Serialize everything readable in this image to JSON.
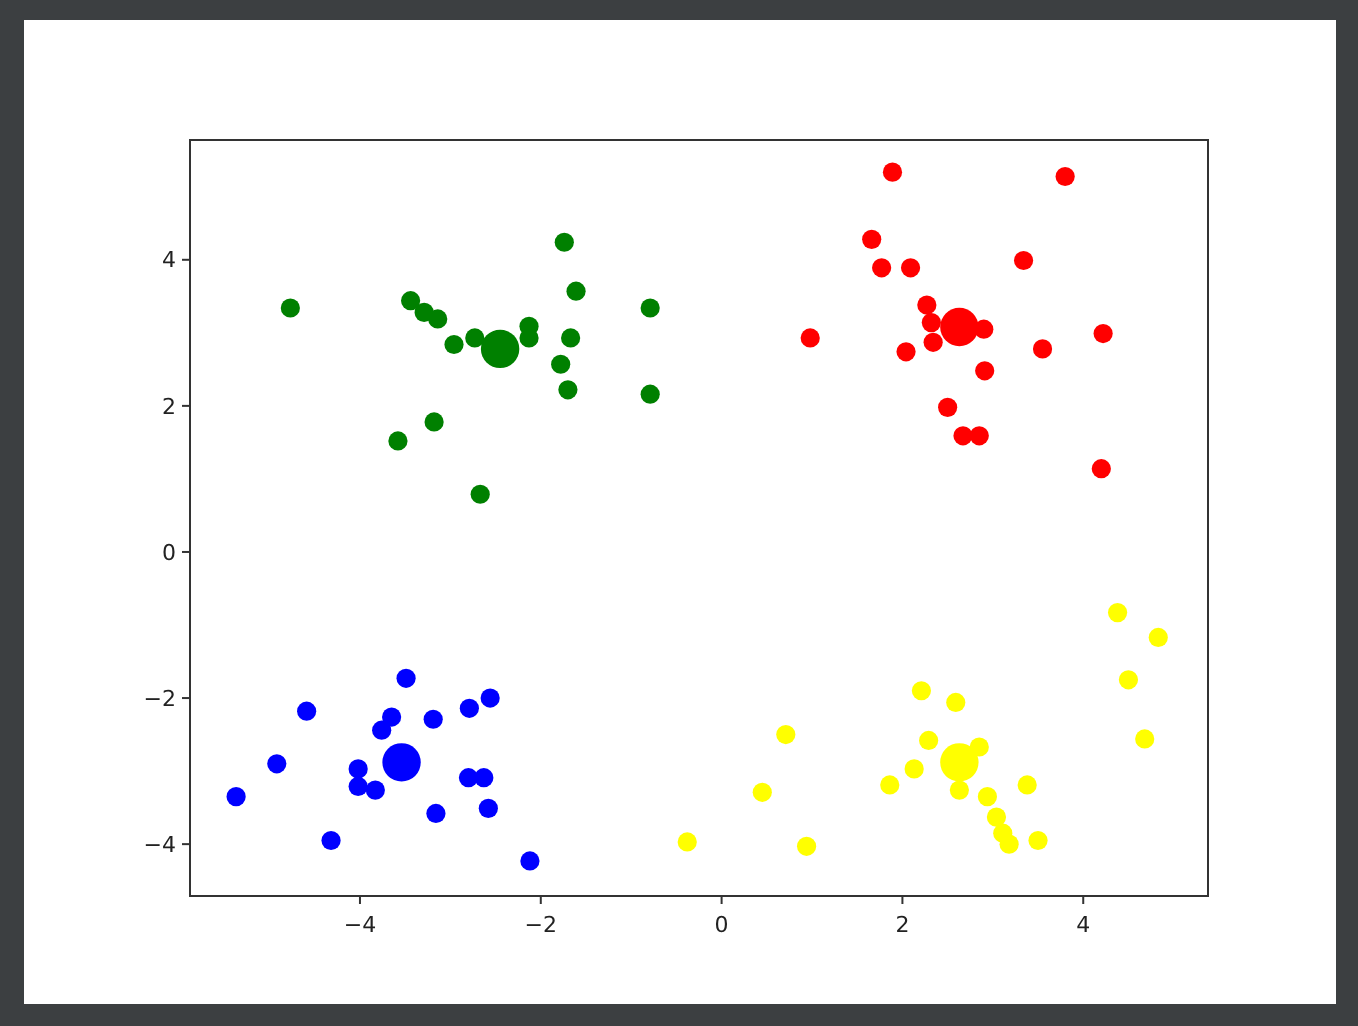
{
  "chart_data": {
    "type": "bubble",
    "xlim": [
      -5.88,
      5.38
    ],
    "ylim": [
      -4.71,
      5.64
    ],
    "xticks": [
      {
        "value": -4,
        "label": "−4"
      },
      {
        "value": -2,
        "label": "−2"
      },
      0,
      2,
      4
    ],
    "yticks": [
      {
        "value": -4,
        "label": "−4"
      },
      {
        "value": -2,
        "label": "−2"
      },
      0,
      2,
      4
    ],
    "series": [
      {
        "color": "#008000",
        "x": [
          -4.77,
          -3.44,
          -3.29,
          -3.14,
          -2.96,
          -2.73,
          -2.13,
          -2.13,
          -1.74,
          -1.61,
          -1.67,
          -1.78,
          -1.7,
          -0.79,
          -0.79,
          -3.58,
          -3.18,
          -2.67,
          -2.45
        ],
        "values": [
          3.34,
          3.44,
          3.28,
          3.19,
          2.84,
          2.93,
          3.09,
          2.93,
          4.24,
          3.57,
          2.93,
          2.57,
          2.22,
          3.34,
          2.16,
          1.52,
          1.78,
          0.79,
          2.78
        ],
        "sizes": [
          0.25,
          0.25,
          0.25,
          0.25,
          0.25,
          0.25,
          0.25,
          0.25,
          0.25,
          0.25,
          0.25,
          0.25,
          0.25,
          0.25,
          0.25,
          0.25,
          0.25,
          0.25,
          1
        ]
      },
      {
        "color": "#ff0000",
        "x": [
          1.89,
          3.8,
          1.66,
          1.77,
          2.09,
          3.34,
          0.98,
          2.27,
          2.32,
          2.34,
          2.04,
          2.9,
          3.55,
          4.22,
          2.91,
          2.5,
          2.67,
          2.85,
          4.2,
          2.63
        ],
        "values": [
          5.2,
          5.14,
          4.28,
          3.89,
          3.89,
          3.99,
          2.93,
          3.38,
          3.14,
          2.87,
          2.74,
          3.05,
          2.78,
          2.99,
          2.48,
          1.98,
          1.59,
          1.59,
          1.14,
          3.08
        ],
        "sizes": [
          0.25,
          0.25,
          0.25,
          0.25,
          0.25,
          0.25,
          0.25,
          0.25,
          0.25,
          0.25,
          0.25,
          0.25,
          0.25,
          0.25,
          0.25,
          0.25,
          0.25,
          0.25,
          0.25,
          1
        ]
      },
      {
        "color": "#0000ff",
        "x": [
          -3.49,
          -4.59,
          -3.65,
          -3.76,
          -3.19,
          -2.79,
          -2.56,
          -4.92,
          -4.02,
          -4.02,
          -3.83,
          -2.8,
          -2.63,
          -5.37,
          -3.16,
          -2.58,
          -4.32,
          -2.12,
          -3.54
        ],
        "values": [
          -1.73,
          -2.18,
          -2.26,
          -2.44,
          -2.29,
          -2.14,
          -2.0,
          -2.9,
          -2.97,
          -3.21,
          -3.26,
          -3.09,
          -3.09,
          -3.35,
          -3.58,
          -3.51,
          -3.95,
          -4.23,
          -2.88
        ],
        "sizes": [
          0.25,
          0.25,
          0.25,
          0.25,
          0.25,
          0.25,
          0.25,
          0.25,
          0.25,
          0.25,
          0.25,
          0.25,
          0.25,
          0.25,
          0.25,
          0.25,
          0.25,
          0.25,
          1
        ]
      },
      {
        "color": "#ffff00",
        "x": [
          4.38,
          4.83,
          4.5,
          4.68,
          2.21,
          2.59,
          0.71,
          2.29,
          2.85,
          2.13,
          1.86,
          0.45,
          2.63,
          2.94,
          3.38,
          3.04,
          3.11,
          3.18,
          3.5,
          -0.38,
          0.94,
          2.63
        ],
        "values": [
          -0.83,
          -1.17,
          -1.75,
          -2.56,
          -1.9,
          -2.06,
          -2.5,
          -2.58,
          -2.67,
          -2.97,
          -3.19,
          -3.29,
          -3.26,
          -3.35,
          -3.19,
          -3.63,
          -3.85,
          -4.0,
          -3.95,
          -3.97,
          -4.03,
          -2.88
        ],
        "sizes": [
          0.25,
          0.25,
          0.25,
          0.25,
          0.25,
          0.25,
          0.25,
          0.25,
          0.25,
          0.25,
          0.25,
          0.25,
          0.25,
          0.25,
          0.25,
          0.25,
          0.25,
          0.25,
          0.25,
          0.25,
          0.25,
          1
        ]
      }
    ]
  }
}
